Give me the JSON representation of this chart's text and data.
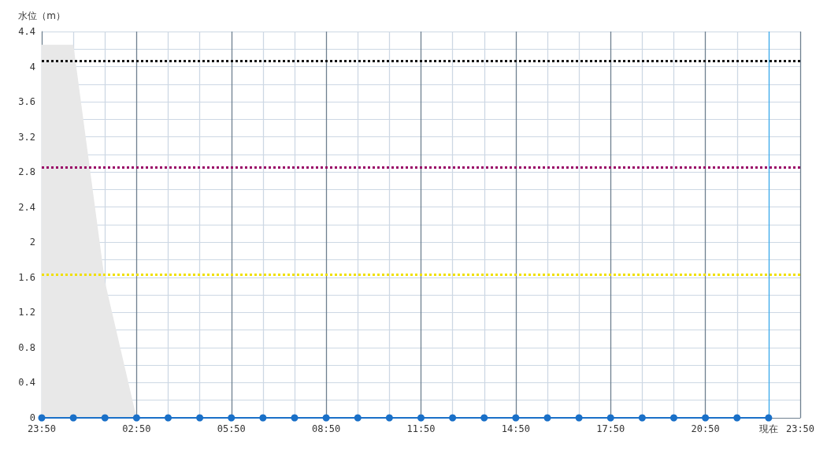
{
  "chart_data": {
    "type": "line",
    "ylabel": "水位（m）",
    "categories": [
      "23:50",
      null,
      null,
      "02:50",
      null,
      null,
      "05:50",
      null,
      null,
      "08:50",
      null,
      null,
      "11:50",
      null,
      null,
      "14:50",
      null,
      null,
      "17:50",
      null,
      null,
      "20:50",
      null,
      "現在",
      "23:50"
    ],
    "ylim": [
      0,
      4.4
    ],
    "yticks": [
      0,
      {
        "value": 0.2,
        "label": null
      },
      0.4,
      {
        "value": 0.6,
        "label": null
      },
      0.8,
      {
        "value": 1.0,
        "label": null
      },
      1.2,
      {
        "value": 1.4,
        "label": null
      },
      1.6,
      {
        "value": 1.8,
        "label": null
      },
      2,
      {
        "value": 2.2,
        "label": null
      },
      2.4,
      {
        "value": 2.6,
        "label": null
      },
      2.8,
      {
        "value": 3.0,
        "label": null
      },
      3.2,
      {
        "value": 3.4,
        "label": null
      },
      3.6,
      {
        "value": 3.8,
        "label": null
      },
      4,
      {
        "value": 4.2,
        "label": null
      },
      4.4
    ],
    "grid": true,
    "series": [
      {
        "type": "area",
        "color": "#e8e8e8",
        "marker": "none",
        "values": [
          4.25,
          4.25,
          1.55,
          0,
          null,
          null,
          null,
          null,
          null,
          null,
          null,
          null,
          null,
          null,
          null,
          null,
          null,
          null,
          null,
          null,
          null,
          null,
          null,
          null,
          null
        ]
      },
      {
        "color": "#1a70c8",
        "marker": "circle",
        "values": [
          0,
          0,
          0,
          0,
          0,
          0,
          0,
          0,
          0,
          0,
          0,
          0,
          0,
          0,
          0,
          0,
          0,
          0,
          0,
          0,
          0,
          0,
          0,
          0,
          null
        ]
      }
    ],
    "ref_lines": [
      {
        "axis": "y",
        "value": 4.07,
        "color": "#111111",
        "line_style": "dotted"
      },
      {
        "axis": "y",
        "value": 2.85,
        "color": "#990066",
        "line_style": "dotted"
      },
      {
        "axis": "y",
        "value": 1.63,
        "color": "#f0e000",
        "line_style": "dotted"
      },
      {
        "axis": "x",
        "value": "現在",
        "color": "#33aaee",
        "line_style": "solid"
      }
    ]
  }
}
